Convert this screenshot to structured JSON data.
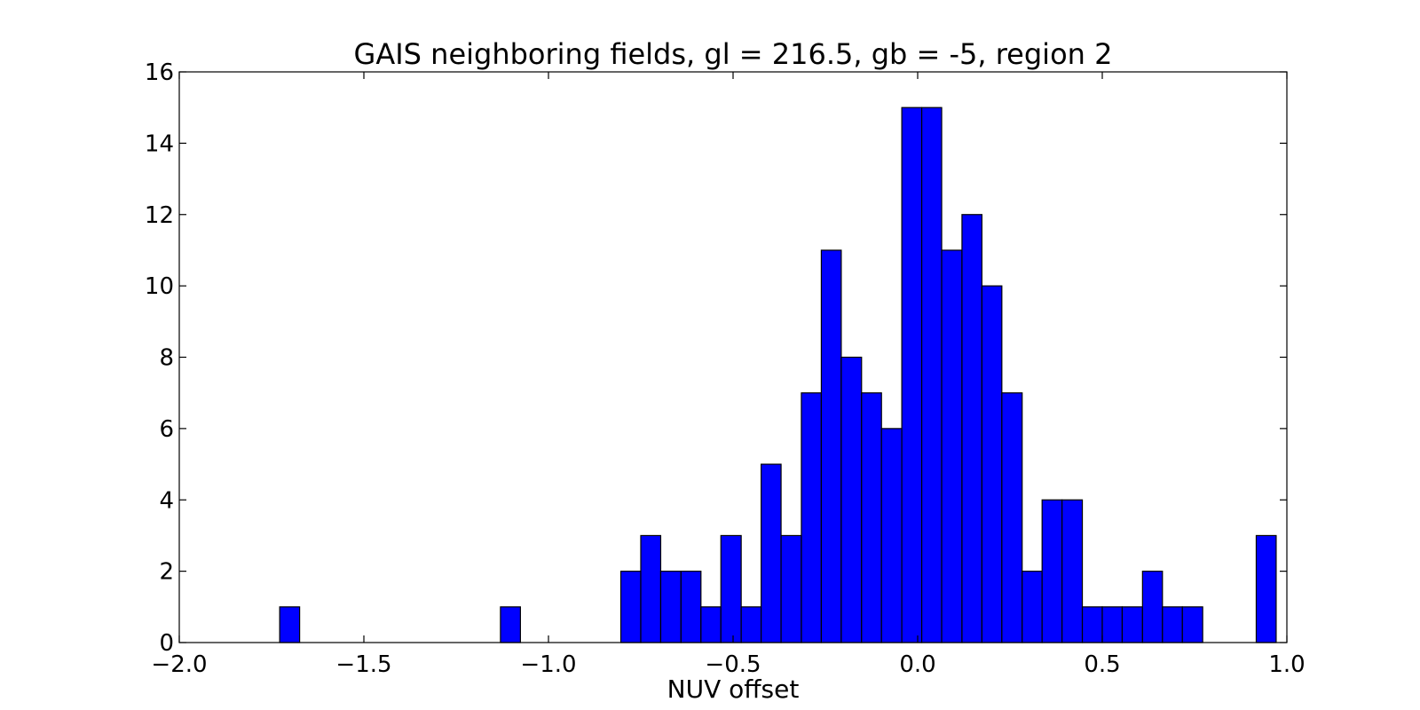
{
  "chart_data": {
    "type": "bar",
    "title": "GAIS neighboring fields, gl = 216.5, gb = -5, region 2",
    "xlabel": "NUV offset",
    "ylabel": "",
    "xlim": [
      -2.0,
      1.0
    ],
    "ylim": [
      0,
      16
    ],
    "grid": false,
    "bar_color": "#0000ff",
    "edge_color": "#000000",
    "x_ticks": [
      -2.0,
      -1.5,
      -1.0,
      -0.5,
      0.0,
      0.5,
      1.0
    ],
    "x_tick_labels": [
      "−2.0",
      "−1.5",
      "−1.0",
      "−0.5",
      "0.0",
      "0.5",
      "1.0"
    ],
    "y_ticks": [
      0,
      2,
      4,
      6,
      8,
      10,
      12,
      14,
      16
    ],
    "y_tick_labels": [
      "0",
      "2",
      "4",
      "6",
      "8",
      "10",
      "12",
      "14",
      "16"
    ],
    "bins": [
      {
        "x0": -1.728,
        "x1": -1.674,
        "count": 1
      },
      {
        "x0": -1.13,
        "x1": -1.076,
        "count": 1
      },
      {
        "x0": -0.804,
        "x1": -0.75,
        "count": 2
      },
      {
        "x0": -0.75,
        "x1": -0.696,
        "count": 3
      },
      {
        "x0": -0.696,
        "x1": -0.641,
        "count": 2
      },
      {
        "x0": -0.641,
        "x1": -0.587,
        "count": 2
      },
      {
        "x0": -0.587,
        "x1": -0.533,
        "count": 1
      },
      {
        "x0": -0.533,
        "x1": -0.478,
        "count": 3
      },
      {
        "x0": -0.478,
        "x1": -0.424,
        "count": 1
      },
      {
        "x0": -0.424,
        "x1": -0.37,
        "count": 5
      },
      {
        "x0": -0.37,
        "x1": -0.315,
        "count": 3
      },
      {
        "x0": -0.315,
        "x1": -0.261,
        "count": 7
      },
      {
        "x0": -0.261,
        "x1": -0.207,
        "count": 11
      },
      {
        "x0": -0.207,
        "x1": -0.152,
        "count": 8
      },
      {
        "x0": -0.152,
        "x1": -0.098,
        "count": 7
      },
      {
        "x0": -0.098,
        "x1": -0.043,
        "count": 6
      },
      {
        "x0": -0.043,
        "x1": 0.011,
        "count": 15
      },
      {
        "x0": 0.011,
        "x1": 0.065,
        "count": 15
      },
      {
        "x0": 0.065,
        "x1": 0.12,
        "count": 11
      },
      {
        "x0": 0.12,
        "x1": 0.174,
        "count": 12
      },
      {
        "x0": 0.174,
        "x1": 0.228,
        "count": 10
      },
      {
        "x0": 0.228,
        "x1": 0.283,
        "count": 7
      },
      {
        "x0": 0.283,
        "x1": 0.337,
        "count": 2
      },
      {
        "x0": 0.337,
        "x1": 0.391,
        "count": 4
      },
      {
        "x0": 0.391,
        "x1": 0.446,
        "count": 4
      },
      {
        "x0": 0.446,
        "x1": 0.5,
        "count": 1
      },
      {
        "x0": 0.5,
        "x1": 0.554,
        "count": 1
      },
      {
        "x0": 0.554,
        "x1": 0.609,
        "count": 1
      },
      {
        "x0": 0.609,
        "x1": 0.663,
        "count": 2
      },
      {
        "x0": 0.663,
        "x1": 0.717,
        "count": 1
      },
      {
        "x0": 0.717,
        "x1": 0.772,
        "count": 1
      },
      {
        "x0": 0.917,
        "x1": 0.971,
        "count": 3
      }
    ]
  }
}
